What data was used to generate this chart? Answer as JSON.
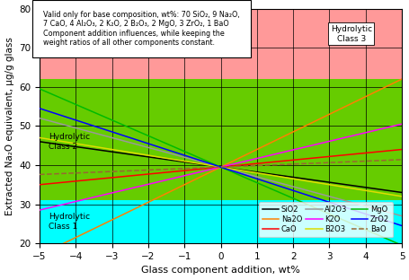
{
  "x_min": -5,
  "x_max": 5,
  "y_min": 20,
  "y_max": 80,
  "x_center": 0,
  "y_center": 39.5,
  "class1_max": 31,
  "class2_max": 62,
  "class1_color": "#00FFFF",
  "class2_color": "#66CC00",
  "class3_color": "#FF9999",
  "annotation_text": "Valid only for base composition, wt%: 70 SiO₂, 9 Na₂O,\n7 CaO, 4 Al₂O₃, 2 K₂O, 2 B₂O₃, 2 MgO, 3 ZrO₂, 1 BaO\nComponent addition influences, while keeping the\nweight ratios of all other components constant.",
  "xlabel": "Glass component addition, wt%",
  "ylabel": "Extracted Na₂O equivalent, μg/g glass",
  "lines": [
    {
      "name": "SiO2",
      "color": "#000000",
      "slope": -1.3,
      "style": "-"
    },
    {
      "name": "Na2O",
      "color": "#FF8000",
      "slope": 4.5,
      "style": "-"
    },
    {
      "name": "CaO",
      "color": "#FF0000",
      "slope": 0.9,
      "style": "-"
    },
    {
      "name": "Al2O3",
      "color": "#999999",
      "slope": -2.5,
      "style": "-"
    },
    {
      "name": "K2O",
      "color": "#FF00FF",
      "slope": 2.2,
      "style": "-"
    },
    {
      "name": "B2O3",
      "color": "#DDDD00",
      "slope": -1.5,
      "style": "-"
    },
    {
      "name": "MgO",
      "color": "#00BB00",
      "slope": -4.0,
      "style": "-"
    },
    {
      "name": "ZrO2",
      "color": "#0000FF",
      "slope": -3.0,
      "style": "-"
    },
    {
      "name": "BaO",
      "color": "#996633",
      "slope": 0.38,
      "style": "--"
    }
  ],
  "legend_order": [
    0,
    1,
    2,
    3,
    4,
    5,
    6,
    7,
    8
  ]
}
